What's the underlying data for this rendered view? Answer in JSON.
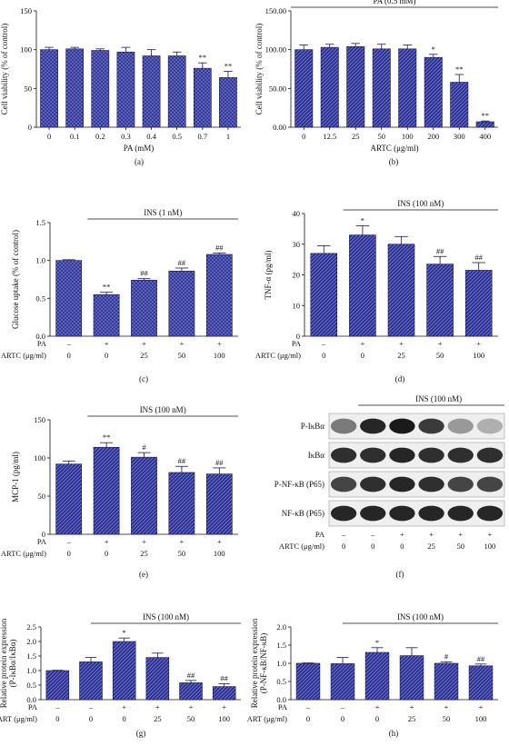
{
  "figure": {
    "panels_label_order": [
      "(a)",
      "(b)",
      "(c)",
      "(d)",
      "(e)",
      "(f)",
      "(g)",
      "(h)"
    ]
  },
  "colors": {
    "bar_fill": "#2b2f8f",
    "bar_edge": "#15174a",
    "axis": "#111111",
    "blot_bg": "#efefef",
    "band": "#1a1a1a"
  },
  "chart_data": [
    {
      "id": "a",
      "type": "bar",
      "panel_label": "(a)",
      "ylabel": "Cell viability (% of control)",
      "xlabel": "PA (mM)",
      "ylim": [
        0,
        150
      ],
      "yticks": [
        0,
        50,
        100,
        150
      ],
      "categories": [
        "0",
        "0.1",
        "0.2",
        "0.3",
        "0.4",
        "0.5",
        "0.7",
        "1"
      ],
      "values": [
        100,
        101,
        99,
        97,
        92,
        92,
        76,
        64
      ],
      "errors": [
        3,
        2,
        2,
        6,
        8,
        5,
        7,
        8
      ],
      "annotations": [
        "",
        "",
        "",
        "",
        "",
        "",
        "**",
        "**"
      ],
      "pattern": "cross"
    },
    {
      "id": "b",
      "type": "bar",
      "panel_label": "(b)",
      "ylabel": "Cell viability (% of control)",
      "xlabel": "ARTC (μg/ml)",
      "ylim": [
        0,
        150
      ],
      "yticks": [
        0.0,
        50.0,
        100.0,
        150.0
      ],
      "ytick_decimals": 2,
      "group_label": "PA (0.5 mM)",
      "categories": [
        "0",
        "12.5",
        "25",
        "50",
        "100",
        "200",
        "300",
        "400"
      ],
      "values": [
        100,
        103,
        104,
        101,
        101,
        90,
        58,
        7
      ],
      "errors": [
        6,
        4,
        4,
        6,
        5,
        4,
        10,
        1
      ],
      "annotations": [
        "",
        "",
        "",
        "",
        "",
        "*",
        "**",
        "**"
      ],
      "pattern": "diag"
    },
    {
      "id": "c",
      "type": "bar",
      "panel_label": "(c)",
      "ylabel": "Glucose uptake (% of control)",
      "ylim": [
        0,
        1.5
      ],
      "yticks": [
        0.0,
        0.5,
        1.0,
        1.5
      ],
      "ytick_decimals": 1,
      "group_label": "INS (1 nM)",
      "condition_rows": [
        {
          "label": "PA",
          "values": [
            "–",
            "+",
            "+",
            "+",
            "+"
          ]
        },
        {
          "label": "ARTC (μg/ml)",
          "values": [
            "0",
            "0",
            "25",
            "50",
            "100"
          ]
        }
      ],
      "values": [
        1.0,
        0.55,
        0.74,
        0.86,
        1.08
      ],
      "errors": [
        0.01,
        0.03,
        0.02,
        0.04,
        0.02
      ],
      "annotations": [
        "",
        "**",
        "##",
        "##",
        "##"
      ],
      "pattern": "cross"
    },
    {
      "id": "d",
      "type": "bar",
      "panel_label": "(d)",
      "ylabel": "TNF-α (pg/ml)",
      "ylim": [
        0,
        40
      ],
      "yticks": [
        0,
        10,
        20,
        30,
        40
      ],
      "group_label": "INS (100 nM)",
      "condition_rows": [
        {
          "label": "PA",
          "values": [
            "–",
            "+",
            "+",
            "+",
            "+"
          ]
        },
        {
          "label": "ARTC (μg/ml)",
          "values": [
            "0",
            "0",
            "25",
            "50",
            "100"
          ]
        }
      ],
      "values": [
        27,
        33,
        30,
        23.5,
        21.5
      ],
      "errors": [
        2.5,
        3,
        2.5,
        2.5,
        2.5
      ],
      "annotations": [
        "",
        "*",
        "",
        "##",
        "##"
      ],
      "pattern": "diag"
    },
    {
      "id": "e",
      "type": "bar",
      "panel_label": "(e)",
      "ylabel": "MCP-1 (pg/ml)",
      "ylim": [
        0,
        150
      ],
      "yticks": [
        0,
        50,
        100,
        150
      ],
      "group_label": "INS (100 nM)",
      "condition_rows": [
        {
          "label": "PA",
          "values": [
            "–",
            "+",
            "+",
            "+",
            "+"
          ]
        },
        {
          "label": "ARTC (μg/ml)",
          "values": [
            "0",
            "0",
            "25",
            "50",
            "100"
          ]
        }
      ],
      "values": [
        92,
        114,
        101,
        81,
        79
      ],
      "errors": [
        4,
        6,
        6,
        8,
        8
      ],
      "annotations": [
        "",
        "**",
        "#",
        "##",
        "##"
      ],
      "pattern": "diag"
    },
    {
      "id": "g",
      "type": "bar",
      "panel_label": "(g)",
      "ylabel": "Relative protein expression (P-IκBα/IκBα)",
      "ylim": [
        0,
        2.5
      ],
      "yticks": [
        0.0,
        0.5,
        1.0,
        1.5,
        2.0,
        2.5
      ],
      "ytick_decimals": 1,
      "group_label": "INS (100 nM)",
      "condition_rows": [
        {
          "label": "PA",
          "values": [
            "–",
            "–",
            "+",
            "+",
            "+",
            "+"
          ]
        },
        {
          "label": "ART (μg/ml)",
          "values": [
            "0",
            "0",
            "0",
            "25",
            "50",
            "100"
          ]
        }
      ],
      "values": [
        1.0,
        1.3,
        2.0,
        1.45,
        0.58,
        0.45
      ],
      "errors": [
        0.01,
        0.15,
        0.12,
        0.15,
        0.08,
        0.1
      ],
      "annotations": [
        "",
        "",
        "*",
        "",
        "##",
        "##"
      ],
      "pattern": "diag"
    },
    {
      "id": "h",
      "type": "bar",
      "panel_label": "(h)",
      "ylabel": "Relative protein expression (P-NF-κB/NF-κB)",
      "ylim": [
        0,
        2.0
      ],
      "yticks": [
        0.0,
        0.5,
        1.0,
        1.5,
        2.0
      ],
      "ytick_decimals": 1,
      "group_label": "INS (100 nM)",
      "condition_rows": [
        {
          "label": "PA",
          "values": [
            "–",
            "–",
            "+",
            "+",
            "+",
            "+"
          ]
        },
        {
          "label": "ART (μg/ml)",
          "values": [
            "0",
            "0",
            "0",
            "25",
            "50",
            "100"
          ]
        }
      ],
      "values": [
        1.0,
        0.99,
        1.3,
        1.21,
        1.0,
        0.93
      ],
      "errors": [
        0.01,
        0.17,
        0.13,
        0.22,
        0.04,
        0.05
      ],
      "annotations": [
        "",
        "",
        "*",
        "",
        "#",
        "##"
      ],
      "pattern": "diag"
    }
  ],
  "blot": {
    "panel_label": "(f)",
    "group_label": "INS (100 nM)",
    "rows": [
      {
        "label": "P-IκBα",
        "intensities": [
          0.55,
          0.95,
          1.0,
          0.85,
          0.4,
          0.3
        ]
      },
      {
        "label": "IκBα",
        "intensities": [
          0.9,
          0.9,
          0.95,
          0.9,
          0.9,
          0.9
        ]
      },
      {
        "label": "P-NF-κB (P65)",
        "intensities": [
          0.8,
          0.9,
          0.95,
          0.9,
          0.8,
          0.8
        ]
      },
      {
        "label": "NF-κB (P65)",
        "intensities": [
          0.95,
          0.95,
          0.95,
          0.95,
          0.95,
          0.95
        ]
      }
    ],
    "condition_rows": [
      {
        "label": "PA",
        "values": [
          "–",
          "–",
          "+",
          "+",
          "+",
          "+"
        ]
      },
      {
        "label": "ARTC (μg/ml)",
        "values": [
          "0",
          "0",
          "0",
          "25",
          "50",
          "100"
        ]
      }
    ]
  }
}
